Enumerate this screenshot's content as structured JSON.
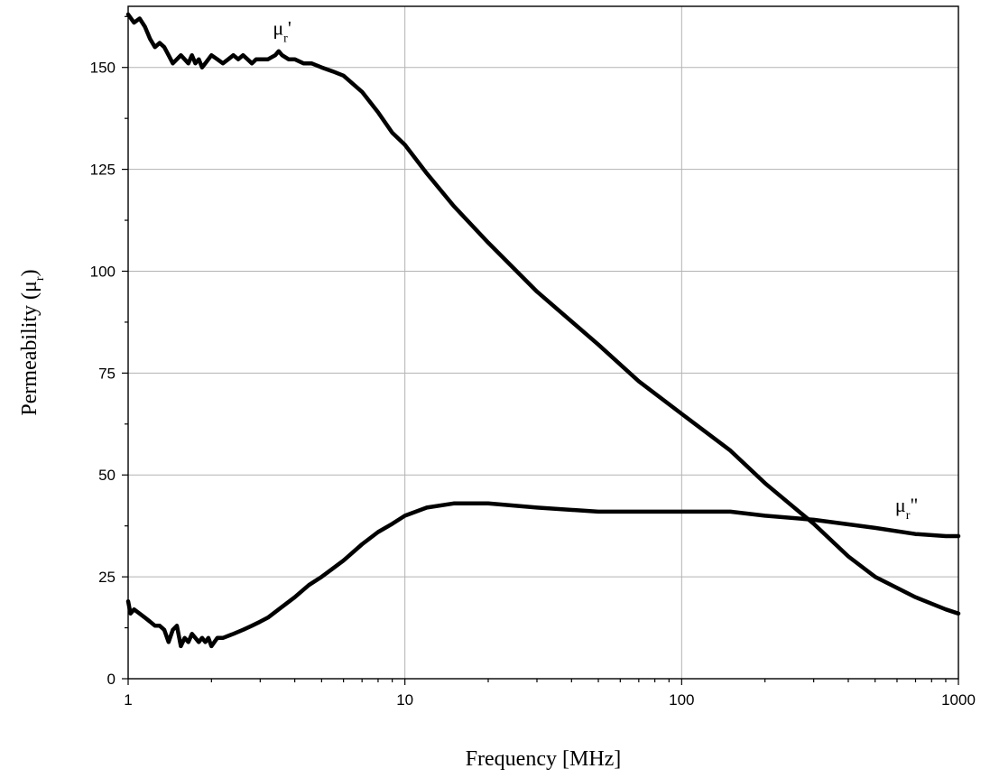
{
  "chart_data": {
    "type": "line",
    "xlabel": "Frequency [MHz]",
    "ylabel": "Permeability (μr)",
    "ylabel_main": "Permeability (μ",
    "ylabel_sub": "r",
    "ylabel_close": ")",
    "x_scale": "log",
    "xlim": [
      1,
      1000
    ],
    "ylim": [
      0,
      165
    ],
    "x_ticks": [
      1,
      10,
      100,
      1000
    ],
    "x_tick_labels": [
      "1",
      "10",
      "100",
      "1000"
    ],
    "y_ticks": [
      0,
      25,
      50,
      75,
      100,
      125,
      150
    ],
    "y_tick_labels": [
      "0",
      "25",
      "50",
      "75",
      "100",
      "125",
      "150"
    ],
    "grid": true,
    "legend": "none",
    "line_color": "#000000",
    "series": [
      {
        "name": "μr'",
        "label_main": "μ",
        "label_sub": "r",
        "label_mark": "'",
        "label_at": [
          3.6,
          158
        ],
        "x": [
          1.0,
          1.05,
          1.1,
          1.15,
          1.2,
          1.25,
          1.3,
          1.35,
          1.4,
          1.45,
          1.5,
          1.55,
          1.6,
          1.65,
          1.7,
          1.75,
          1.8,
          1.85,
          1.9,
          1.95,
          2.0,
          2.1,
          2.2,
          2.3,
          2.4,
          2.5,
          2.6,
          2.7,
          2.8,
          2.9,
          3.0,
          3.2,
          3.4,
          3.5,
          3.6,
          3.8,
          4.0,
          4.3,
          4.6,
          5.0,
          5.5,
          6.0,
          7.0,
          8.0,
          9.0,
          10,
          12,
          15,
          20,
          30,
          50,
          70,
          100,
          150,
          200,
          300,
          400,
          500,
          700,
          900,
          1000
        ],
        "values": [
          163,
          161,
          162,
          160,
          157,
          155,
          156,
          155,
          153,
          151,
          152,
          153,
          152,
          151,
          153,
          151,
          152,
          150,
          151,
          152,
          153,
          152,
          151,
          152,
          153,
          152,
          153,
          152,
          151,
          152,
          152,
          152,
          153,
          154,
          153,
          152,
          152,
          151,
          151,
          150,
          149,
          148,
          144,
          139,
          134,
          131,
          124,
          116,
          107,
          95,
          82,
          73,
          65,
          56,
          48,
          38,
          30,
          25,
          20,
          17,
          16
        ]
      },
      {
        "name": "μr\"",
        "label_main": "μ",
        "label_sub": "r",
        "label_mark": "\"",
        "label_at": [
          650,
          41
        ],
        "x": [
          1.0,
          1.02,
          1.05,
          1.1,
          1.15,
          1.2,
          1.25,
          1.3,
          1.35,
          1.4,
          1.45,
          1.5,
          1.55,
          1.6,
          1.65,
          1.7,
          1.75,
          1.8,
          1.85,
          1.9,
          1.95,
          2.0,
          2.1,
          2.2,
          2.4,
          2.6,
          2.8,
          3.0,
          3.2,
          3.5,
          4.0,
          4.5,
          5.0,
          6.0,
          7.0,
          8.0,
          9.0,
          10,
          12,
          15,
          20,
          30,
          50,
          70,
          100,
          150,
          200,
          300,
          500,
          700,
          900,
          1000
        ],
        "values": [
          19,
          16,
          17,
          16,
          15,
          14,
          13,
          13,
          12,
          9,
          12,
          13,
          8,
          10,
          9,
          11,
          10,
          9,
          10,
          9,
          10,
          8,
          10,
          10,
          11,
          12,
          13,
          14,
          15,
          17,
          20,
          23,
          25,
          29,
          33,
          36,
          38,
          40,
          42,
          43,
          43,
          42,
          41,
          41,
          41,
          41,
          40,
          39,
          37,
          35.5,
          35,
          35
        ]
      }
    ]
  }
}
